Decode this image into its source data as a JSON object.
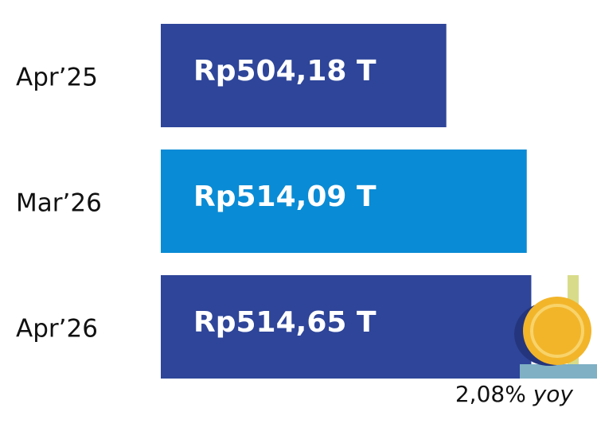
{
  "chart_data": {
    "type": "barh",
    "categories": [
      "Apr’25",
      "Mar’26",
      "Apr’26"
    ],
    "values": [
      504.18,
      514.09,
      514.65
    ],
    "value_labels": [
      "Rp504,18 T",
      "Rp514,09 T",
      "Rp514,65 T"
    ],
    "colors": [
      "#2e4599",
      "#0a8bd5",
      "#2e4599"
    ],
    "xlim": [
      469,
      520
    ],
    "annotation": "2,08%",
    "annotation_suffix": "yoy"
  }
}
